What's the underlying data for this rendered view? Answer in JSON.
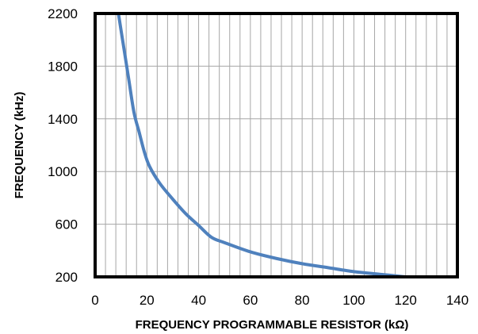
{
  "chart_data": {
    "type": "line",
    "title": "",
    "xlabel": "FREQUENCY   PROGRAMMABLE RESISTOR  (kΩ)",
    "ylabel": "FREQUENCY  (kHz)",
    "xlim": [
      0,
      140
    ],
    "ylim": [
      200,
      2200
    ],
    "x_ticks": [
      0,
      20,
      40,
      60,
      80,
      100,
      120,
      140
    ],
    "y_ticks": [
      200,
      600,
      1000,
      1400,
      1800,
      2200
    ],
    "x_minor_step": 4,
    "grid": true,
    "legend": "none",
    "series": [
      {
        "color": "#4F81BD",
        "x": [
          9,
          11,
          13,
          15,
          17,
          19,
          21,
          25,
          30,
          35,
          40,
          45,
          50,
          60,
          70,
          80,
          90,
          100,
          110,
          120
        ],
        "y": [
          2200,
          1950,
          1700,
          1450,
          1300,
          1150,
          1040,
          910,
          790,
          680,
          590,
          500,
          460,
          390,
          340,
          300,
          270,
          240,
          220,
          200
        ]
      }
    ]
  }
}
